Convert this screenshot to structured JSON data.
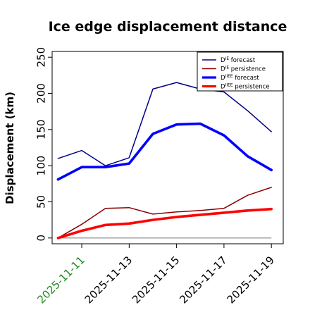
{
  "chart_data": {
    "type": "line",
    "title": "Ice edge displacement distance",
    "xlabel": "",
    "ylabel": "Displacement (km)",
    "x": [
      "2025-11-10",
      "2025-11-11",
      "2025-11-12",
      "2025-11-13",
      "2025-11-14",
      "2025-11-15",
      "2025-11-16",
      "2025-11-17",
      "2025-11-18",
      "2025-11-19"
    ],
    "x_tick_labels": [
      "2025-11-11",
      "2025-11-13",
      "2025-11-15",
      "2025-11-17",
      "2025-11-19"
    ],
    "x_tick_label_colors": [
      "#228B22",
      "#000000",
      "#000000",
      "#000000",
      "#000000"
    ],
    "xlim": [
      "2025-11-09T18:00",
      "2025-11-19T12:00"
    ],
    "ylim": [
      -8,
      258
    ],
    "yticks": [
      0,
      50,
      100,
      150,
      200,
      250
    ],
    "grid": false,
    "legend_position": "top-right",
    "reference_line": 0,
    "series": [
      {
        "name_base": "D",
        "name_sup": "IE",
        "name_rest": " forecast",
        "color": "#00008B",
        "width": "thin",
        "values": [
          110,
          121,
          100,
          111,
          206,
          215,
          206,
          202,
          176,
          147
        ]
      },
      {
        "name_base": "D",
        "name_sup": "IE",
        "name_rest": " persistence",
        "color": "#8B0000",
        "width": "thin",
        "values": [
          0,
          19,
          41,
          42,
          33,
          36,
          38,
          41,
          59,
          70
        ]
      },
      {
        "name_base": "D",
        "name_sup": "IIEE",
        "name_rest": " forecast",
        "color": "#0000FF",
        "width": "thick",
        "values": [
          81,
          98,
          98,
          103,
          144,
          157,
          158,
          142,
          113,
          94
        ]
      },
      {
        "name_base": "D",
        "name_sup": "IIEE",
        "name_rest": " persistence",
        "color": "#FF0000",
        "width": "thick",
        "values": [
          0,
          10,
          18,
          20,
          25,
          29,
          32,
          35,
          38,
          40
        ]
      }
    ]
  }
}
